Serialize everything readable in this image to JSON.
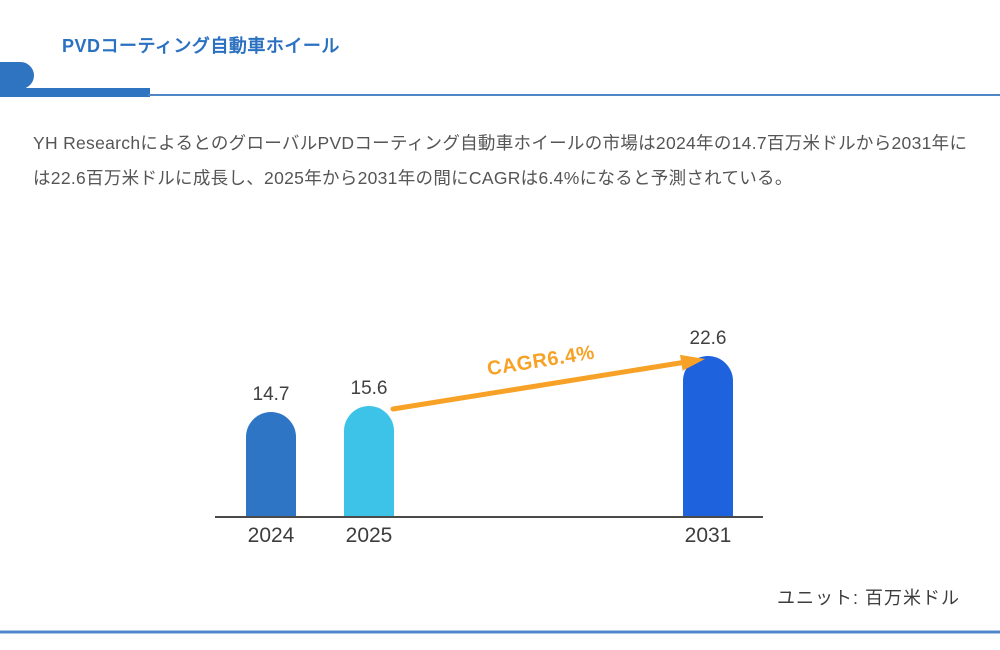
{
  "header": {
    "title": "PVDコーティング自動車ホイール"
  },
  "body": {
    "paragraph": "YH ResearchによるとのグローバルPVDコーティング自動車ホイールの市場は2024年の14.7百万米ドルから2031年には22.6百万米ドルに成長し、2025年から2031年の間にCAGRは6.4%になると予測されている。"
  },
  "chart_data": {
    "type": "bar",
    "categories": [
      "2024",
      "2025",
      "2031"
    ],
    "values": [
      14.7,
      15.6,
      22.6
    ],
    "value_labels": [
      "14.7",
      "15.6",
      "22.6"
    ],
    "bar_colors": [
      "#2f75c5",
      "#3ec3e8",
      "#1e62dd"
    ],
    "annotation": "CAGR6.4%",
    "annotation_color": "#f7a226",
    "unit_label": "ユニット: 百万米ドル",
    "ylabel": "",
    "xlabel": "",
    "ylim": [
      0,
      23
    ],
    "grid": false,
    "legend": "none",
    "axis_color": "#4a4a4a"
  },
  "colors": {
    "title_blue": "#2b71c1",
    "accent_blue": "#2e74c0",
    "divider_blue": "#4f86cb",
    "paragraph_gray": "#555555",
    "label_gray": "#404040"
  }
}
